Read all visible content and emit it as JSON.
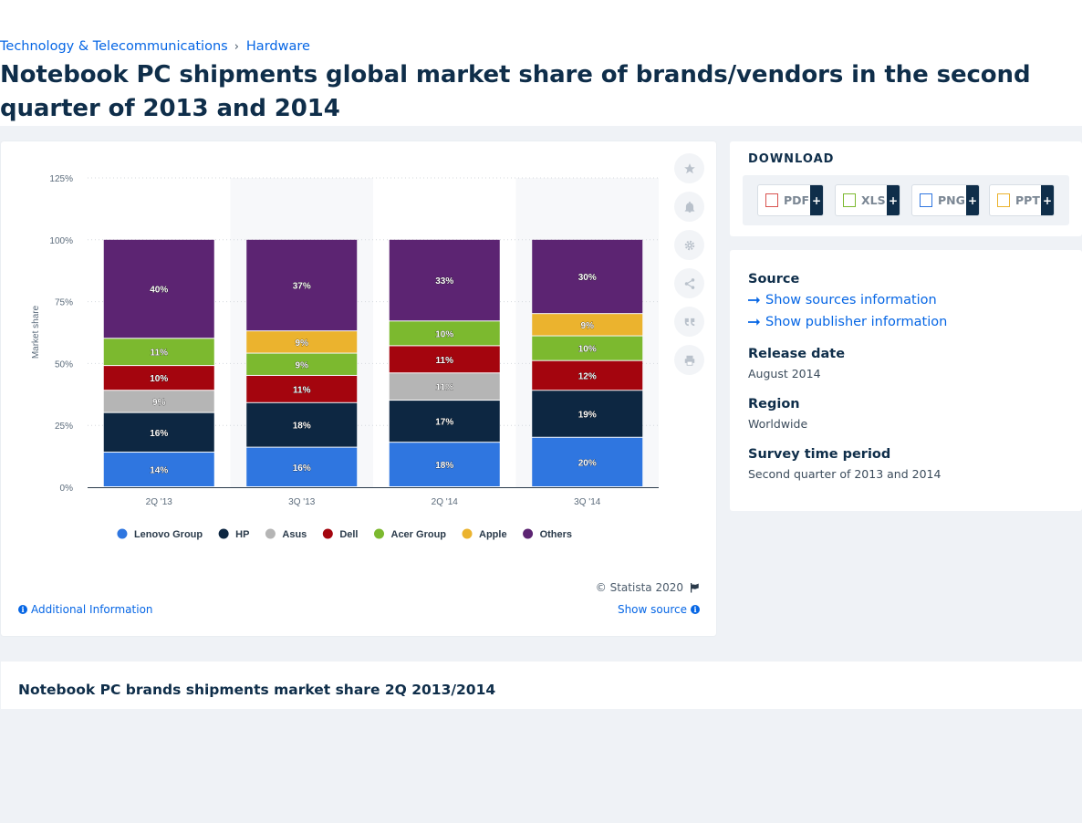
{
  "breadcrumb": {
    "category": "Technology & Telecommunications",
    "separator": "›",
    "subcategory": "Hardware"
  },
  "page_title": "Notebook PC shipments global market share of brands/vendors in the second quarter of 2013 and 2014",
  "toolbar": {
    "icons": [
      "star-icon",
      "bell-icon",
      "gear-icon",
      "share-icon",
      "quote-icon",
      "print-icon"
    ]
  },
  "chart_footer": {
    "credit": "© Statista 2020",
    "additional_info": "Additional Information",
    "show_source": "Show source"
  },
  "download": {
    "title": "DOWNLOAD",
    "formats": [
      "PDF",
      "XLS",
      "PNG",
      "PPT"
    ],
    "plus": "+"
  },
  "meta": {
    "source_label": "Source",
    "show_sources": "Show sources information",
    "show_publisher": "Show publisher information",
    "release_label": "Release date",
    "release_value": "August 2014",
    "region_label": "Region",
    "region_value": "Worldwide",
    "survey_label": "Survey time period",
    "survey_value": "Second quarter of 2013 and 2014"
  },
  "related": {
    "title": "Notebook PC brands shipments market share 2Q 2013/2014"
  },
  "chart_data": {
    "type": "bar",
    "stacked": true,
    "ylabel": "Market share",
    "ylim": [
      0,
      125
    ],
    "yticks": [
      0,
      25,
      50,
      75,
      100,
      125
    ],
    "ytick_labels": [
      "0%",
      "25%",
      "50%",
      "75%",
      "100%",
      "125%"
    ],
    "categories": [
      "2Q '13",
      "3Q '13",
      "2Q '14",
      "3Q '14"
    ],
    "grid": true,
    "legend_position": "bottom",
    "series": [
      {
        "name": "Lenovo Group",
        "color": "#2f76e0",
        "values": [
          14,
          16,
          18,
          20
        ],
        "labels": [
          "14%",
          "16%",
          "18%",
          "20%"
        ]
      },
      {
        "name": "HP",
        "color": "#0d2742",
        "values": [
          16,
          18,
          17,
          19
        ],
        "labels": [
          "16%",
          "18%",
          "17%",
          "19%"
        ]
      },
      {
        "name": "Asus",
        "color": "#b5b5b5",
        "values": [
          9,
          null,
          11,
          null
        ],
        "labels": [
          "9%",
          "",
          "11%",
          ""
        ]
      },
      {
        "name": "Dell",
        "color": "#a4050e",
        "values": [
          10,
          11,
          11,
          12
        ],
        "labels": [
          "10%",
          "11%",
          "11%",
          "12%"
        ]
      },
      {
        "name": "Acer Group",
        "color": "#7cb92f",
        "values": [
          11,
          9,
          10,
          10
        ],
        "labels": [
          "11%",
          "9%",
          "10%",
          "10%"
        ]
      },
      {
        "name": "Apple",
        "color": "#ebb32e",
        "values": [
          null,
          9,
          null,
          9
        ],
        "labels": [
          "",
          "9%",
          "",
          "9%"
        ]
      },
      {
        "name": "Others",
        "color": "#5c2472",
        "values": [
          40,
          37,
          33,
          30
        ],
        "labels": [
          "40%",
          "37%",
          "33%",
          "30%"
        ]
      }
    ]
  }
}
